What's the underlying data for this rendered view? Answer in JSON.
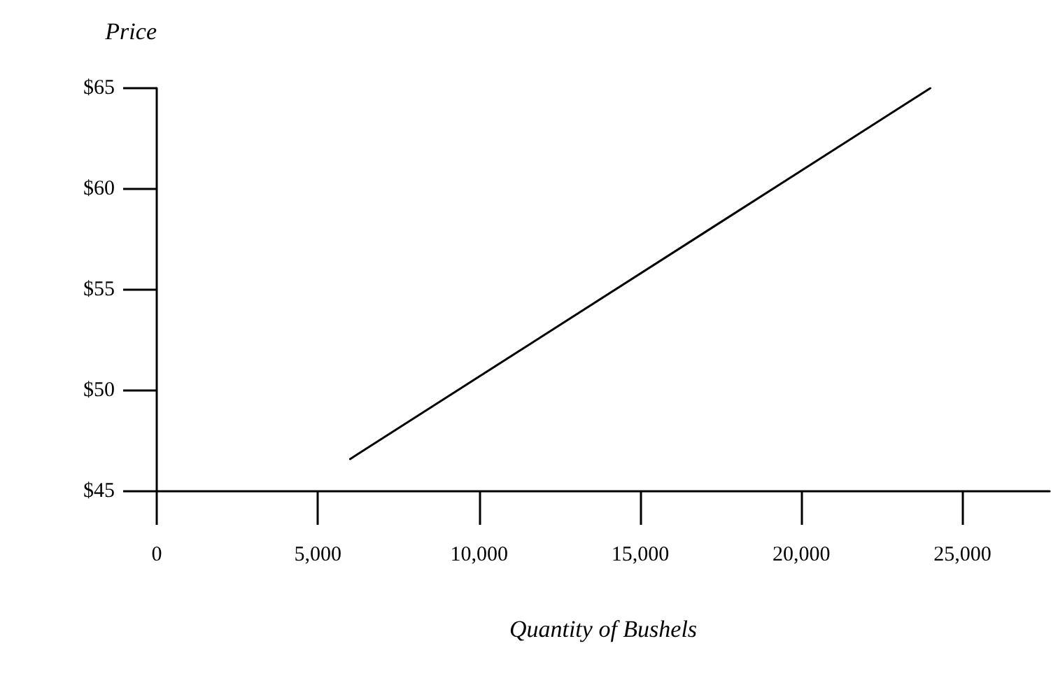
{
  "chart_data": {
    "type": "line",
    "xlabel": "Quantity of Bushels",
    "ylabel": "Price",
    "xlim": [
      0,
      27700
    ],
    "ylim": [
      45,
      65
    ],
    "xticks": [
      0,
      {
        "value": 5000,
        "label": "5,000"
      },
      {
        "value": 10000,
        "label": "10,000"
      },
      {
        "value": 15000,
        "label": "15,000"
      },
      {
        "value": 20000,
        "label": "20,000"
      },
      {
        "value": 25000,
        "label": "25,000"
      }
    ],
    "yticks": [
      {
        "value": 45,
        "label": "$45"
      },
      {
        "value": 50,
        "label": "$50"
      },
      {
        "value": 55,
        "label": "$55"
      },
      {
        "value": 60,
        "label": "$60"
      },
      {
        "value": 65,
        "label": "$65"
      }
    ],
    "series": [
      {
        "color": "#000000",
        "x": [
          6000,
          24000
        ],
        "values": [
          46.6,
          65
        ]
      }
    ],
    "line_style": "solid"
  }
}
